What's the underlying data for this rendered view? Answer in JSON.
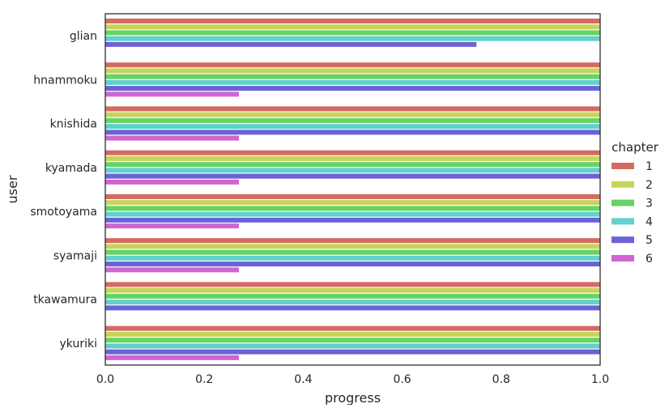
{
  "chart_data": {
    "type": "bar",
    "orientation": "horizontal",
    "xlabel": "progress",
    "ylabel": "user",
    "xlim": [
      0,
      1.0
    ],
    "xticks": [
      "0.0",
      "0.2",
      "0.4",
      "0.6",
      "0.8",
      "1.0"
    ],
    "grid": false,
    "legend": {
      "title": "chapter",
      "placement": "right"
    },
    "categories": [
      "glian",
      "hnammoku",
      "knishida",
      "kyamada",
      "smotoyama",
      "syamaji",
      "tkawamura",
      "ykuriki"
    ],
    "series": [
      {
        "name": "1",
        "color": "#d36b62",
        "values": [
          1.0,
          1.0,
          1.0,
          1.0,
          1.0,
          1.0,
          1.0,
          1.0
        ]
      },
      {
        "name": "2",
        "color": "#c8d35c",
        "values": [
          1.0,
          1.0,
          1.0,
          1.0,
          1.0,
          1.0,
          1.0,
          1.0
        ]
      },
      {
        "name": "3",
        "color": "#66d367",
        "values": [
          1.0,
          1.0,
          1.0,
          1.0,
          1.0,
          1.0,
          1.0,
          1.0
        ]
      },
      {
        "name": "4",
        "color": "#62d0cb",
        "values": [
          1.0,
          1.0,
          1.0,
          1.0,
          1.0,
          1.0,
          1.0,
          1.0
        ]
      },
      {
        "name": "5",
        "color": "#6c62d6",
        "values": [
          0.75,
          1.0,
          1.0,
          1.0,
          1.0,
          1.0,
          1.0,
          1.0
        ]
      },
      {
        "name": "6",
        "color": "#cf66cf",
        "values": [
          null,
          0.27,
          0.27,
          0.27,
          0.27,
          0.27,
          null,
          0.27
        ]
      }
    ]
  }
}
